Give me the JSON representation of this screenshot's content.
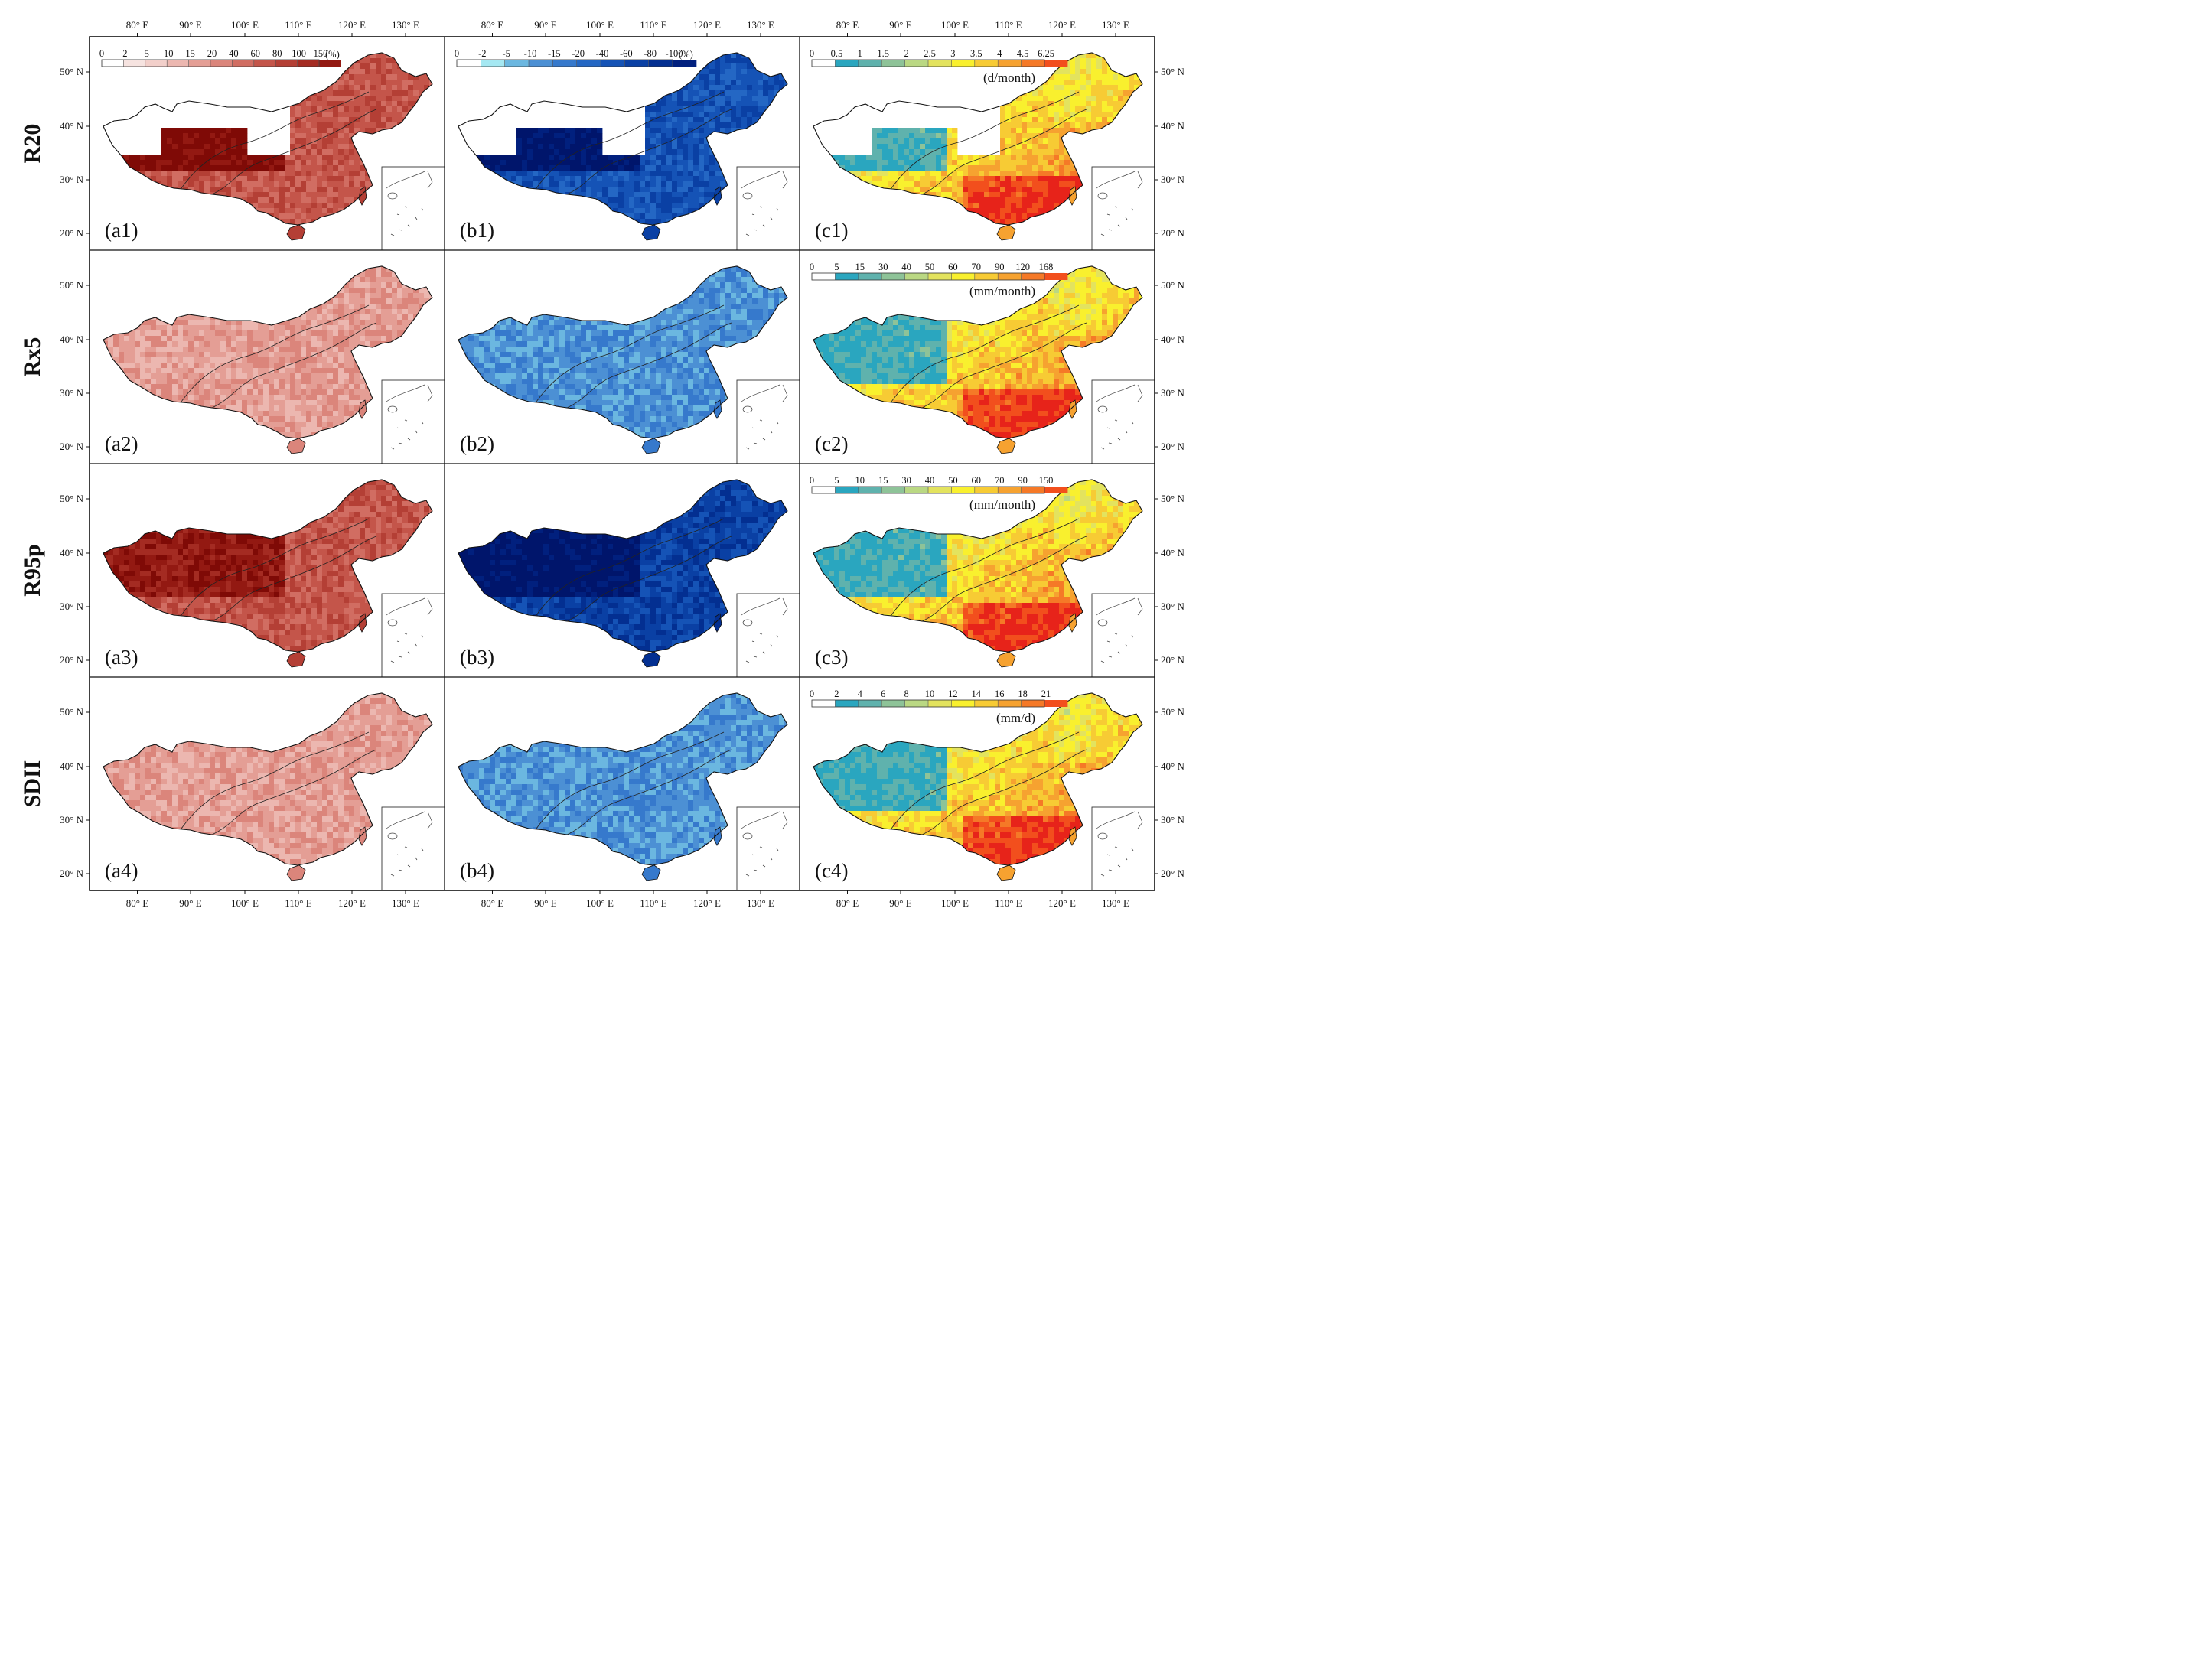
{
  "lon_ticks": [
    "80° E",
    "90° E",
    "100° E",
    "110° E",
    "120° E",
    "130° E"
  ],
  "lat_ticks": [
    "50° N",
    "40° N",
    "30° N",
    "20° N"
  ],
  "rows": [
    "R20",
    "Rx5",
    "R95p",
    "SDII"
  ],
  "colors": {
    "a": [
      "#f6e3e0",
      "#f2cfca",
      "#ecb7b0",
      "#e49e95",
      "#db857b",
      "#d16d62",
      "#c4554a",
      "#b43f35",
      "#a42b22",
      "#931912",
      "#7f0a06"
    ],
    "b": [
      "#a5e8f2",
      "#6bb7e0",
      "#4c90d4",
      "#3679cc",
      "#2467c4",
      "#1553b6",
      "#0a40a4",
      "#032f91",
      "#01207e",
      "#00156b"
    ],
    "c": [
      "#2aa6bf",
      "#5fb2ad",
      "#8ec398",
      "#bad883",
      "#e3e35e",
      "#f9f02e",
      "#f7cb34",
      "#f6a230",
      "#f57927",
      "#f24f1d",
      "#e7231a"
    ]
  },
  "colorbars": {
    "a": {
      "ticks": [
        "0",
        "2",
        "5",
        "10",
        "15",
        "20",
        "40",
        "60",
        "80",
        "100",
        "150"
      ],
      "unit": "(%)"
    },
    "b": {
      "ticks": [
        "0",
        "-2",
        "-5",
        "-10",
        "-15",
        "-20",
        "-40",
        "-60",
        "-80",
        "-100"
      ],
      "unit": "(%)"
    },
    "c1": {
      "ticks": [
        "0",
        "0.5",
        "1",
        "1.5",
        "2",
        "2.5",
        "3",
        "3.5",
        "4",
        "4.5",
        "6.25"
      ],
      "unit": "(d/month)"
    },
    "c2": {
      "ticks": [
        "0",
        "5",
        "15",
        "30",
        "40",
        "50",
        "60",
        "70",
        "90",
        "120",
        "168"
      ],
      "unit": "(mm/month)"
    },
    "c3": {
      "ticks": [
        "0",
        "5",
        "10",
        "15",
        "30",
        "40",
        "50",
        "60",
        "70",
        "90",
        "150"
      ],
      "unit": "(mm/month)"
    },
    "c4": {
      "ticks": [
        "0",
        "2",
        "4",
        "6",
        "8",
        "10",
        "12",
        "14",
        "16",
        "18",
        "21"
      ],
      "unit": "(mm/d)"
    }
  },
  "panels": [
    {
      "id": "a1",
      "label": "(a1)",
      "level": 6,
      "west_level": 10,
      "west_blank": true
    },
    {
      "id": "b1",
      "label": "(b1)",
      "level": 5,
      "west_level": 9,
      "west_blank": true
    },
    {
      "id": "c1",
      "label": "(c1)",
      "west_blank": true
    },
    {
      "id": "a2",
      "label": "(a2)",
      "level": 3
    },
    {
      "id": "b2",
      "label": "(b2)",
      "level": 2
    },
    {
      "id": "c2",
      "label": "(c2)"
    },
    {
      "id": "a3",
      "label": "(a3)",
      "level": 6,
      "west_level": 9
    },
    {
      "id": "b3",
      "label": "(b3)",
      "level": 6,
      "west_level": 9
    },
    {
      "id": "c3",
      "label": "(c3)"
    },
    {
      "id": "a4",
      "label": "(a4)",
      "level": 3
    },
    {
      "id": "b4",
      "label": "(b4)",
      "level": 2
    },
    {
      "id": "c4",
      "label": "(c4)"
    }
  ]
}
